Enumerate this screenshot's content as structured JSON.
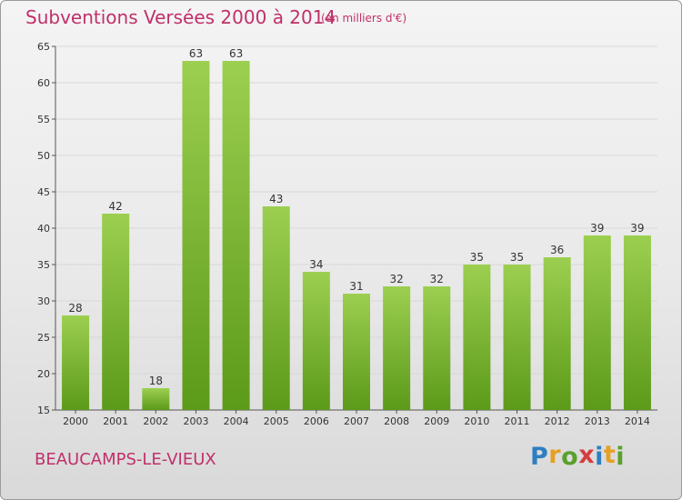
{
  "title": "Subventions Versées 2000 à 2014",
  "subtitle": "(en milliers d'€)",
  "commune": "BEAUCAMPS-LE-VIEUX",
  "logo": {
    "letters": [
      "P",
      "r",
      "o",
      "x",
      "i",
      "t",
      "i"
    ],
    "colors": [
      "#2e7fc1",
      "#e7a024",
      "#5aa02c",
      "#d43d3d",
      "#2e7fc1",
      "#e7a024",
      "#5aa02c"
    ]
  },
  "colors": {
    "accent": "#c0306a",
    "bar_top": "#9ccf50",
    "bar_bottom": "#5c9a1a"
  },
  "chart_data": {
    "type": "bar",
    "title": "Subventions Versées 2000 à 2014",
    "subtitle": "(en milliers d'€)",
    "categories": [
      "2000",
      "2001",
      "2002",
      "2003",
      "2004",
      "2005",
      "2006",
      "2007",
      "2008",
      "2009",
      "2010",
      "2011",
      "2012",
      "2013",
      "2014"
    ],
    "values": [
      28,
      42,
      18,
      63,
      63,
      43,
      34,
      31,
      32,
      32,
      35,
      35,
      36,
      39,
      39
    ],
    "ylim": [
      15,
      65
    ],
    "yticks": [
      15,
      20,
      25,
      30,
      35,
      40,
      45,
      50,
      55,
      60,
      65
    ],
    "grid": true
  }
}
